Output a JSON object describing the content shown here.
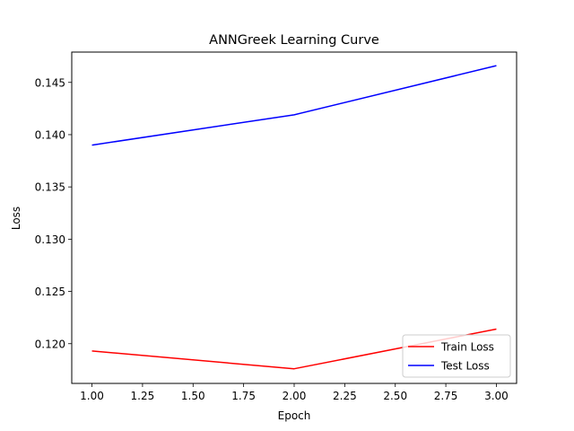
{
  "chart_data": {
    "type": "line",
    "title": "ANNGreek Learning Curve",
    "xlabel": "Epoch",
    "ylabel": "Loss",
    "xlim": [
      0.9,
      3.1
    ],
    "ylim": [
      0.1162,
      0.1479
    ],
    "x": [
      1.0,
      2.0,
      3.0
    ],
    "xticks": [
      1.0,
      1.25,
      1.5,
      1.75,
      2.0,
      2.25,
      2.5,
      2.75,
      3.0
    ],
    "xtick_labels": [
      "1.00",
      "1.25",
      "1.50",
      "1.75",
      "2.00",
      "2.25",
      "2.50",
      "2.75",
      "3.00"
    ],
    "yticks": [
      0.12,
      0.125,
      0.13,
      0.135,
      0.14,
      0.145
    ],
    "ytick_labels": [
      "0.120",
      "0.125",
      "0.130",
      "0.135",
      "0.140",
      "0.145"
    ],
    "grid": false,
    "legend_position": "bottom-right",
    "series": [
      {
        "name": "Train Loss",
        "color": "#ff0000",
        "values": [
          0.1193,
          0.1176,
          0.1214
        ]
      },
      {
        "name": "Test Loss",
        "color": "#0000ff",
        "values": [
          0.139,
          0.1419,
          0.1466
        ]
      }
    ]
  }
}
